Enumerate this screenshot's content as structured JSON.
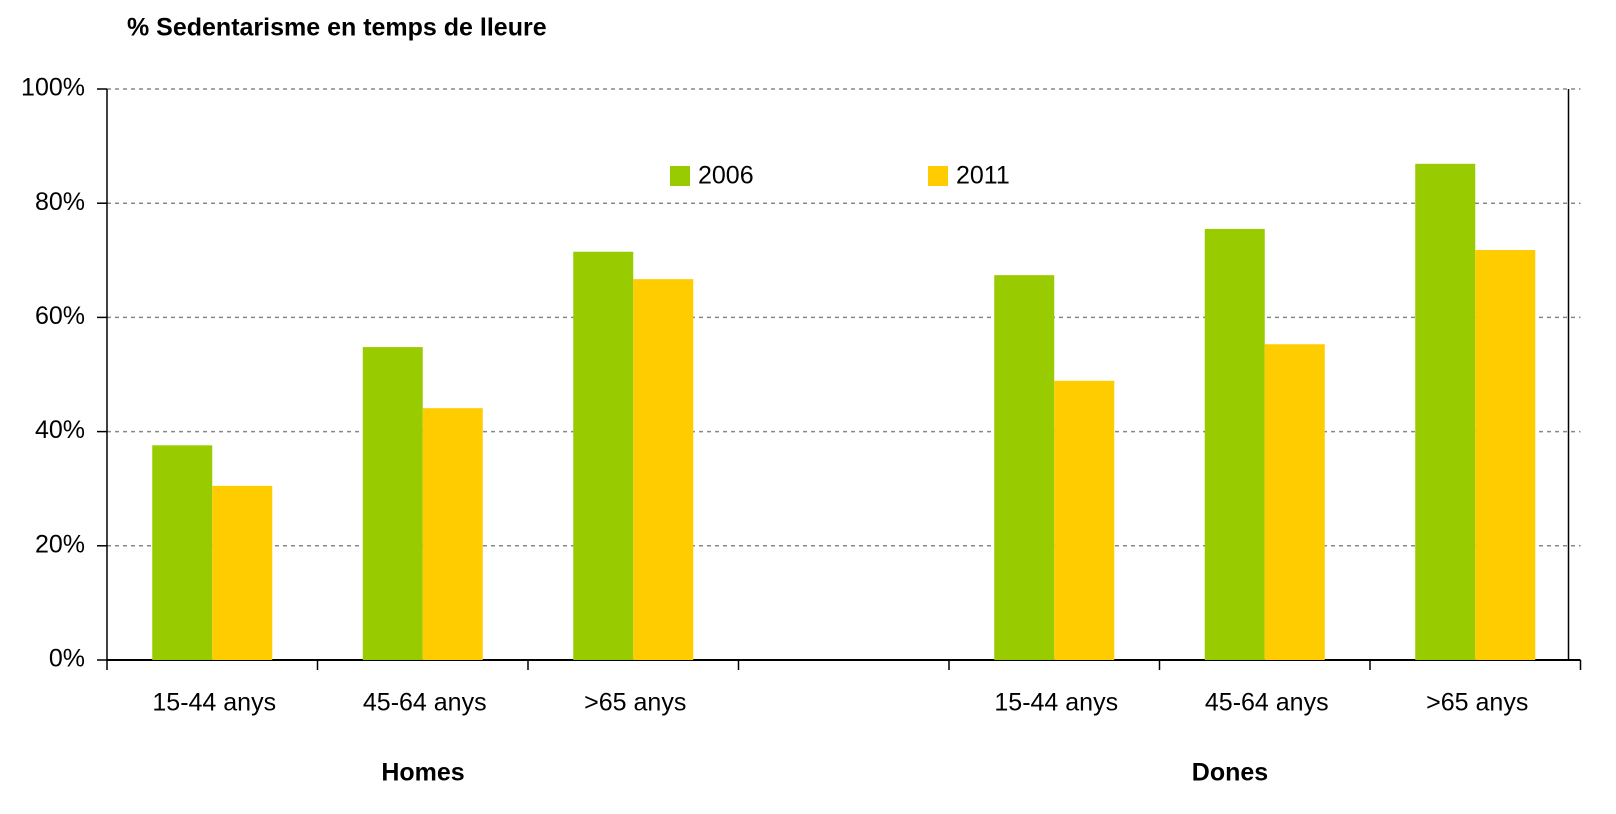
{
  "chart_data": {
    "type": "bar",
    "title": "% Sedentarisme en temps de lleure",
    "categories": [
      "15-44 anys",
      "45-64 anys",
      ">65 anys",
      null,
      "15-44 anys",
      "45-64 anys",
      ">65 anys"
    ],
    "group_labels": [
      "Homes",
      "Dones"
    ],
    "series": [
      {
        "name": "2006",
        "color": "#99cc00",
        "values": [
          37.6,
          54.8,
          71.5,
          null,
          67.4,
          75.5,
          86.9
        ]
      },
      {
        "name": "2011",
        "color": "#ffcc00",
        "values": [
          30.5,
          44.1,
          66.7,
          null,
          48.9,
          55.3,
          71.8
        ]
      }
    ],
    "ylim": [
      0,
      100
    ],
    "yticks": [
      {
        "value": 0,
        "label": "0%"
      },
      {
        "value": 20,
        "label": "20%"
      },
      {
        "value": 40,
        "label": "40%"
      },
      {
        "value": 60,
        "label": "60%"
      },
      {
        "value": 80,
        "label": "80%"
      },
      {
        "value": 100,
        "label": "100%"
      }
    ],
    "grid": true,
    "legend": "top"
  }
}
